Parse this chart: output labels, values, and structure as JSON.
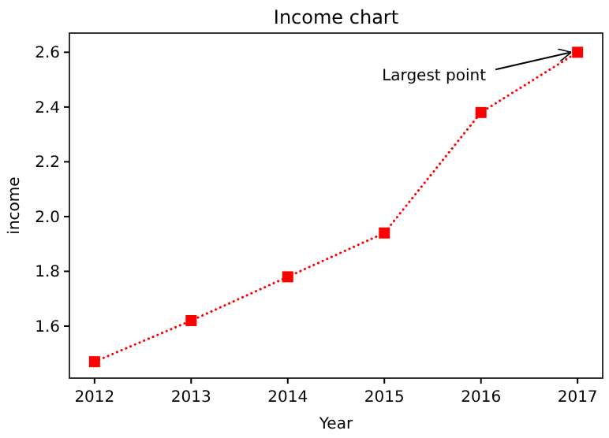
{
  "chart_data": {
    "type": "line",
    "title": "Income chart",
    "xlabel": "Year",
    "ylabel": "income",
    "x": [
      2012,
      2013,
      2014,
      2015,
      2016,
      2017
    ],
    "series": [
      {
        "color": "#ff0000",
        "values": [
          1.47,
          1.62,
          1.78,
          1.94,
          2.38,
          2.6
        ]
      }
    ],
    "xlim": [
      2011.74,
      2017.26
    ],
    "xticks": [
      2012,
      2013,
      2014,
      2015,
      2016,
      2017
    ],
    "ylim": [
      1.41,
      2.67
    ],
    "yticks": [
      {
        "value": 1.6,
        "label": "1.6"
      },
      {
        "value": 1.8,
        "label": "1.8"
      },
      {
        "value": 2.0,
        "label": "2.0"
      },
      {
        "value": 2.2,
        "label": "2.2"
      },
      {
        "value": 2.4,
        "label": "2.4"
      },
      {
        "value": 2.6,
        "label": "2.6"
      }
    ],
    "annotations": [
      {
        "text": "Largest point",
        "x": 2017,
        "y": 2.6
      }
    ],
    "grid": false,
    "marker": "square",
    "line_style": "dotted"
  }
}
